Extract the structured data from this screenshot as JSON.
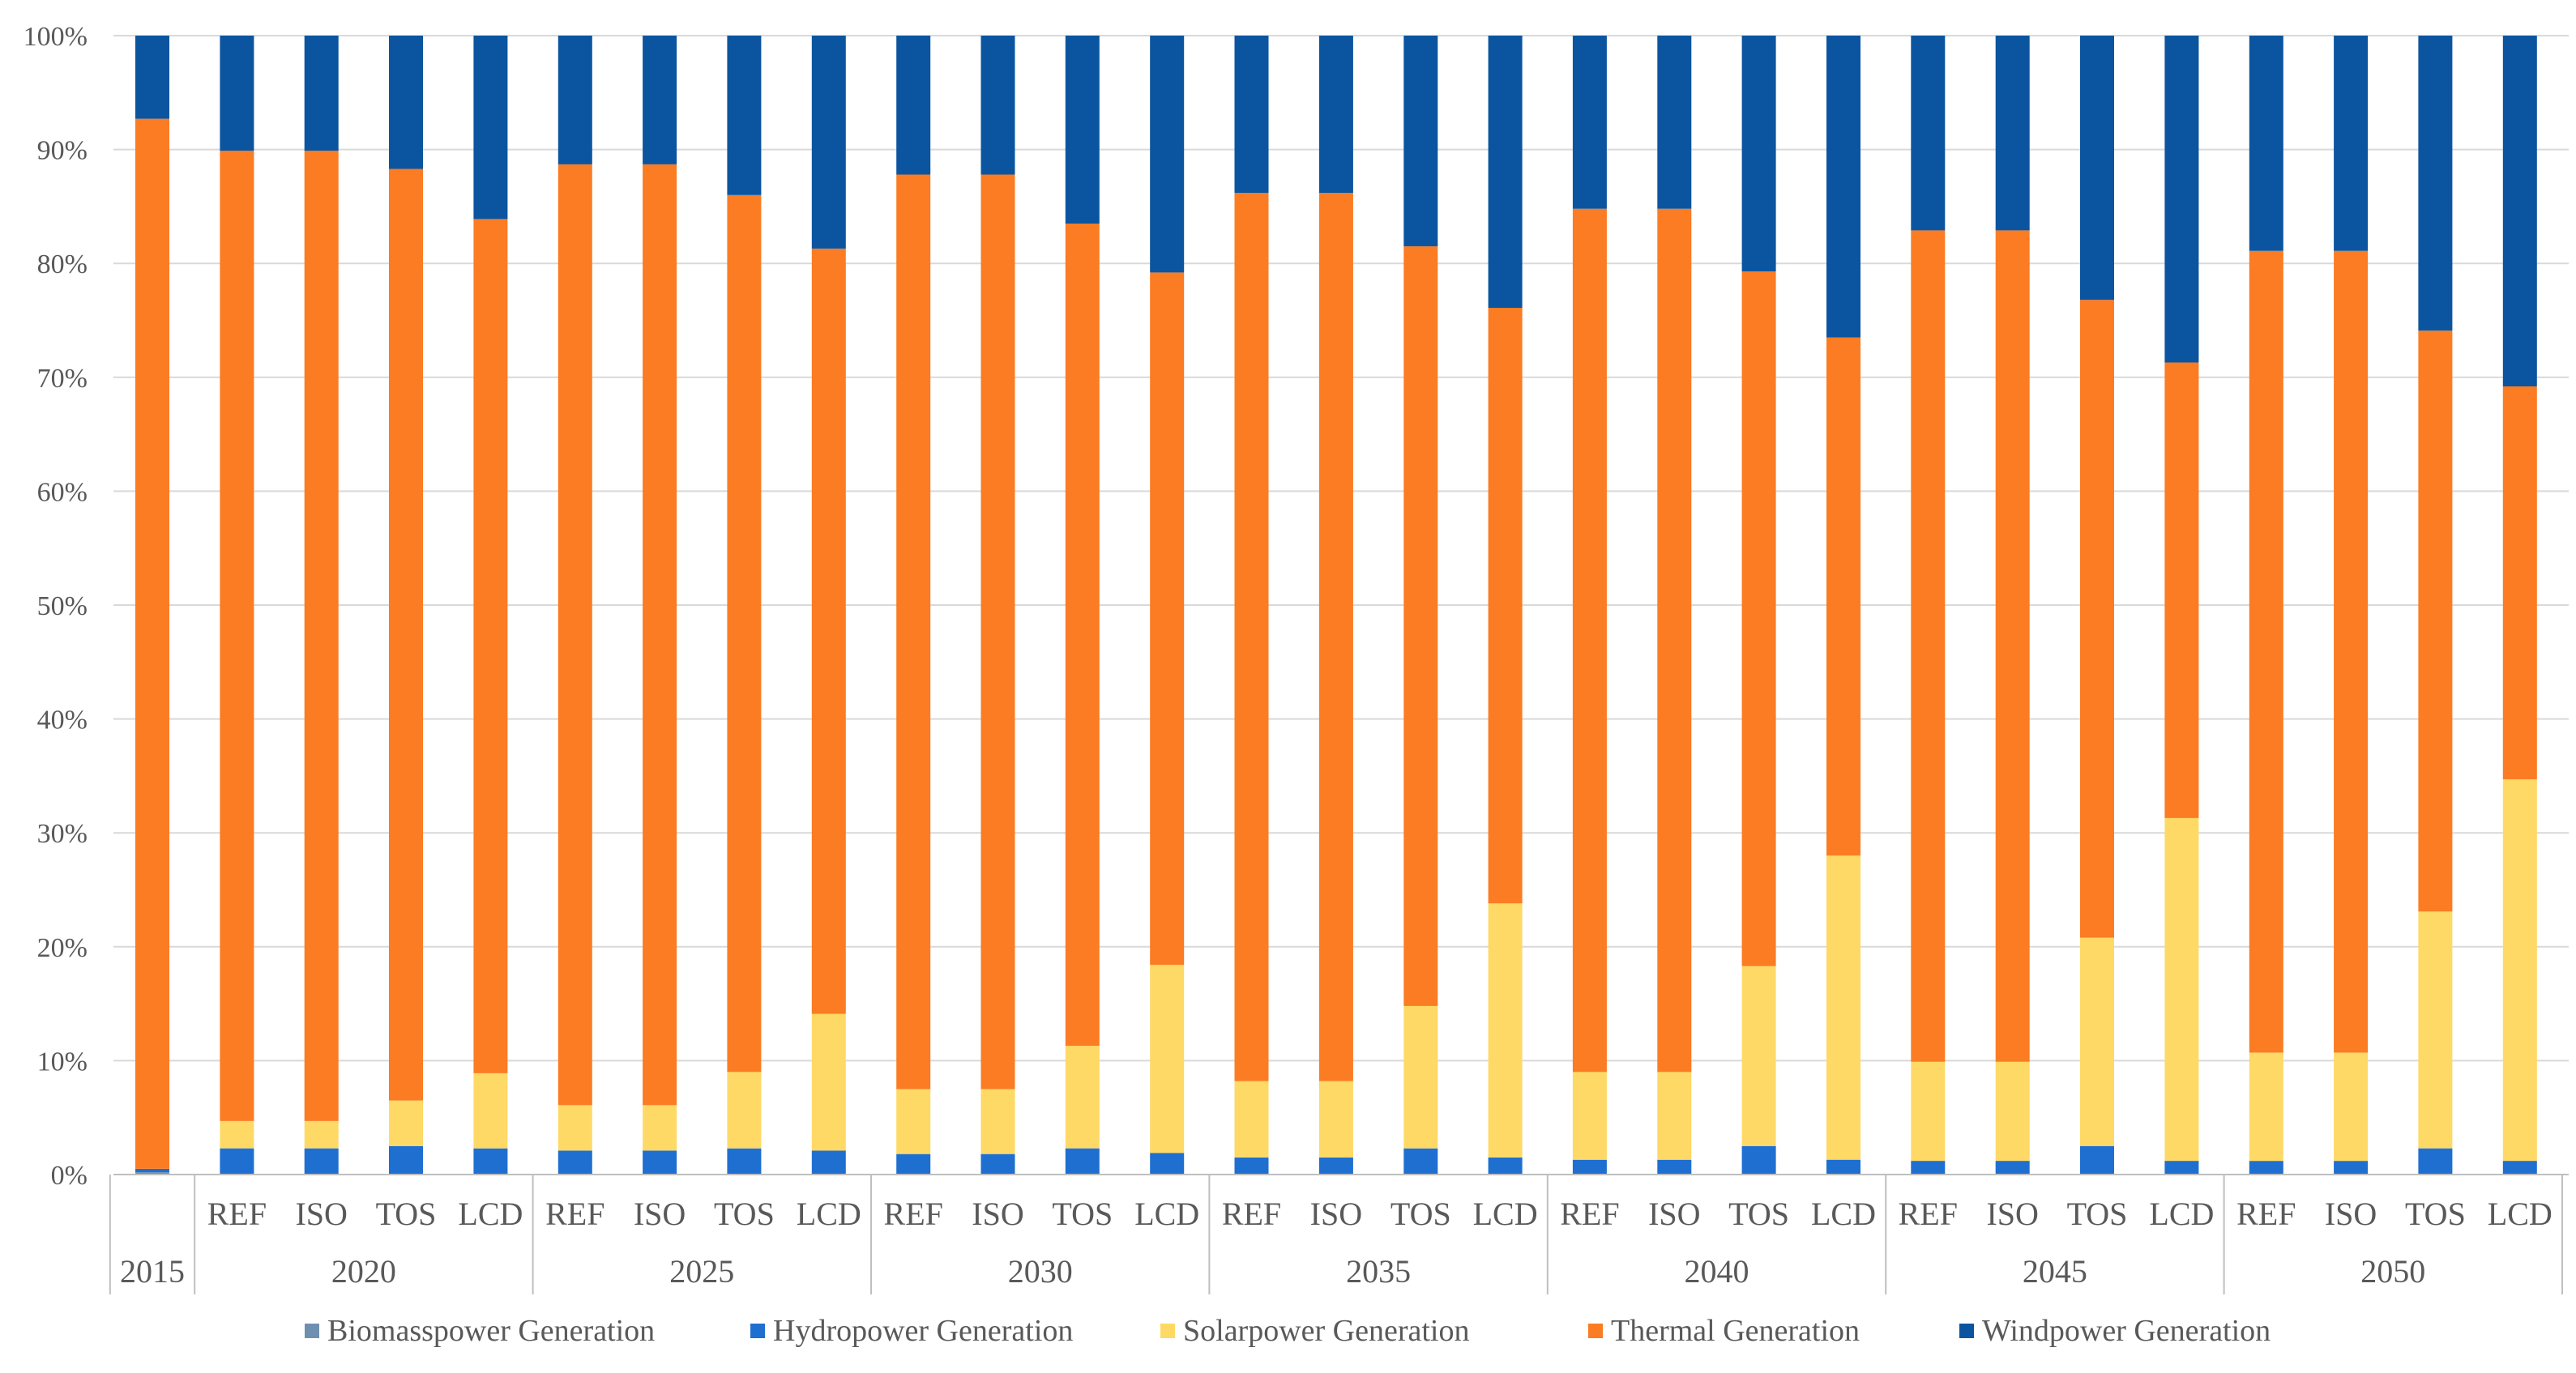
{
  "chart_data": {
    "type": "bar",
    "stacked": true,
    "percent": true,
    "title": "",
    "xlabel": "",
    "ylabel": "",
    "ylim": [
      0,
      100
    ],
    "y_tick_labels": [
      "0%",
      "10%",
      "20%",
      "30%",
      "40%",
      "50%",
      "60%",
      "70%",
      "80%",
      "90%",
      "100%"
    ],
    "grid": true,
    "legend_position": "bottom",
    "years": [
      "2015",
      "2020",
      "2025",
      "2030",
      "2035",
      "2040",
      "2045",
      "2050"
    ],
    "scenarios": [
      "REF",
      "ISO",
      "TOS",
      "LCD"
    ],
    "bars": [
      {
        "year": "2015",
        "scenario": ""
      },
      {
        "year": "2020",
        "scenario": "REF"
      },
      {
        "year": "2020",
        "scenario": "ISO"
      },
      {
        "year": "2020",
        "scenario": "TOS"
      },
      {
        "year": "2020",
        "scenario": "LCD"
      },
      {
        "year": "2025",
        "scenario": "REF"
      },
      {
        "year": "2025",
        "scenario": "ISO"
      },
      {
        "year": "2025",
        "scenario": "TOS"
      },
      {
        "year": "2025",
        "scenario": "LCD"
      },
      {
        "year": "2030",
        "scenario": "REF"
      },
      {
        "year": "2030",
        "scenario": "ISO"
      },
      {
        "year": "2030",
        "scenario": "TOS"
      },
      {
        "year": "2030",
        "scenario": "LCD"
      },
      {
        "year": "2035",
        "scenario": "REF"
      },
      {
        "year": "2035",
        "scenario": "ISO"
      },
      {
        "year": "2035",
        "scenario": "TOS"
      },
      {
        "year": "2035",
        "scenario": "LCD"
      },
      {
        "year": "2040",
        "scenario": "REF"
      },
      {
        "year": "2040",
        "scenario": "ISO"
      },
      {
        "year": "2040",
        "scenario": "TOS"
      },
      {
        "year": "2040",
        "scenario": "LCD"
      },
      {
        "year": "2045",
        "scenario": "REF"
      },
      {
        "year": "2045",
        "scenario": "ISO"
      },
      {
        "year": "2045",
        "scenario": "TOS"
      },
      {
        "year": "2045",
        "scenario": "LCD"
      },
      {
        "year": "2050",
        "scenario": "REF"
      },
      {
        "year": "2050",
        "scenario": "ISO"
      },
      {
        "year": "2050",
        "scenario": "TOS"
      },
      {
        "year": "2050",
        "scenario": "LCD"
      }
    ],
    "series": [
      {
        "name": "Biomasspower Generation",
        "color": "#6f8fb0",
        "values": [
          0.2,
          0,
          0,
          0,
          0,
          0,
          0,
          0,
          0,
          0,
          0,
          0,
          0,
          0,
          0,
          0,
          0,
          0,
          0,
          0,
          0,
          0,
          0,
          0,
          0,
          0,
          0,
          0,
          0
        ]
      },
      {
        "name": "Hydropower Generation",
        "color": "#1f6fd1",
        "values": [
          0.3,
          2.3,
          2.3,
          2.5,
          2.3,
          2.1,
          2.1,
          2.3,
          2.1,
          1.8,
          1.8,
          2.3,
          1.9,
          1.5,
          1.5,
          2.3,
          1.5,
          1.3,
          1.3,
          2.5,
          1.3,
          1.2,
          1.2,
          2.5,
          1.2,
          1.2,
          1.2,
          2.3,
          1.2
        ]
      },
      {
        "name": "Solarpower Generation",
        "color": "#ffd966",
        "values": [
          0,
          2.4,
          2.4,
          4.0,
          6.6,
          4.0,
          4.0,
          6.7,
          12.0,
          5.7,
          5.7,
          9.0,
          16.5,
          6.7,
          6.7,
          12.5,
          22.3,
          7.7,
          7.7,
          15.8,
          26.7,
          8.7,
          8.7,
          18.3,
          30.1,
          9.5,
          9.5,
          20.8,
          33.5
        ]
      },
      {
        "name": "Thermal Generation",
        "color": "#fb7c23",
        "values": [
          92.2,
          85.2,
          85.2,
          81.8,
          75.0,
          82.6,
          82.6,
          77.0,
          67.2,
          80.3,
          80.3,
          72.2,
          60.8,
          78.0,
          78.0,
          66.7,
          52.3,
          75.8,
          75.8,
          61.0,
          45.5,
          73.0,
          73.0,
          56.0,
          40.0,
          70.4,
          70.4,
          51.0,
          34.5
        ]
      },
      {
        "name": "Windpower Generation",
        "color": "#0b55a0",
        "values": [
          7.3,
          10.1,
          10.1,
          11.7,
          16.1,
          11.3,
          11.3,
          14.0,
          18.7,
          12.2,
          12.2,
          16.5,
          20.8,
          13.8,
          13.8,
          18.5,
          23.9,
          15.2,
          15.2,
          20.7,
          26.5,
          17.1,
          17.1,
          23.2,
          28.7,
          18.9,
          18.9,
          25.9,
          30.8
        ]
      }
    ]
  }
}
